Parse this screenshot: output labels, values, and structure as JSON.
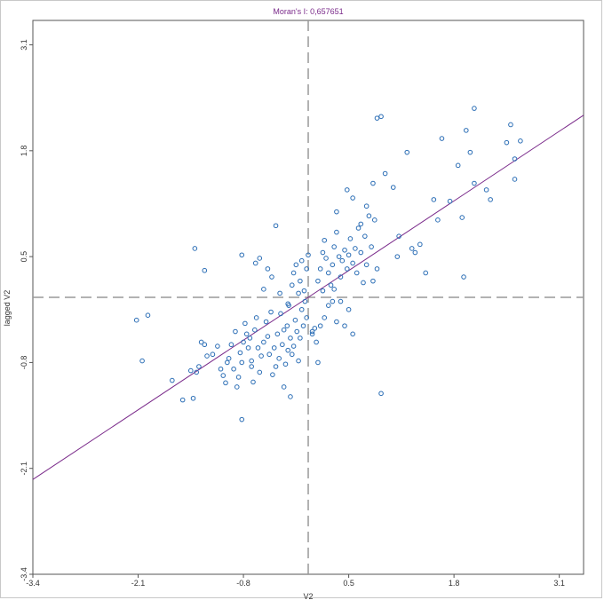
{
  "chart_data": {
    "type": "scatter",
    "title": "Moran's I: 0,657651",
    "xlabel": "V2",
    "ylabel": "lagged V2",
    "xlim": [
      -3.4,
      3.4
    ],
    "ylim": [
      -3.4,
      3.4
    ],
    "xticks": [
      -3.4,
      -2.1,
      -0.8,
      0.5,
      1.8,
      3.1
    ],
    "xtick_labels": [
      "-3.4",
      "-2.1",
      "-0.8",
      "0.5",
      "1.8",
      "3.1"
    ],
    "yticks": [
      -3.4,
      -2.1,
      -0.8,
      0.5,
      1.8,
      3.1
    ],
    "ytick_labels": [
      "-3.4",
      "-2.1",
      "-0.8",
      "0.5",
      "1.8",
      "3.1"
    ],
    "grid": false,
    "mean_lines": {
      "x": 0,
      "y": 0
    },
    "regression": {
      "slope": 0.657651,
      "intercept": 0.0
    },
    "colors": {
      "points": "#2a6db5",
      "regression": "#7a2a8a",
      "mean_lines": "#999999",
      "axes": "#555555"
    },
    "points": [
      [
        -2.12,
        -0.28
      ],
      [
        -1.98,
        -0.22
      ],
      [
        -2.05,
        -0.78
      ],
      [
        -1.68,
        -1.02
      ],
      [
        -1.55,
        -1.26
      ],
      [
        -1.42,
        -1.24
      ],
      [
        -1.45,
        -0.9
      ],
      [
        -1.38,
        -0.92
      ],
      [
        -1.35,
        -0.85
      ],
      [
        -1.32,
        -0.55
      ],
      [
        -1.28,
        -0.58
      ],
      [
        -1.25,
        -0.72
      ],
      [
        -1.18,
        -0.7
      ],
      [
        -1.12,
        -0.6
      ],
      [
        -1.08,
        -0.88
      ],
      [
        -1.05,
        -0.96
      ],
      [
        -1.02,
        -1.05
      ],
      [
        -1.0,
        -0.8
      ],
      [
        -0.98,
        -0.75
      ],
      [
        -0.95,
        -0.58
      ],
      [
        -0.92,
        -0.88
      ],
      [
        -0.9,
        -0.42
      ],
      [
        -0.88,
        -1.1
      ],
      [
        -0.86,
        -0.98
      ],
      [
        -0.84,
        -0.68
      ],
      [
        -0.82,
        -0.8
      ],
      [
        -0.8,
        -0.55
      ],
      [
        -0.78,
        -0.32
      ],
      [
        -0.76,
        -0.45
      ],
      [
        -0.74,
        -0.62
      ],
      [
        -0.72,
        -0.5
      ],
      [
        -0.7,
        -0.85
      ],
      [
        -0.68,
        -1.04
      ],
      [
        -0.66,
        -0.4
      ],
      [
        -0.64,
        -0.25
      ],
      [
        -0.62,
        -0.62
      ],
      [
        -0.6,
        -0.92
      ],
      [
        -0.58,
        -0.72
      ],
      [
        -0.55,
        -0.55
      ],
      [
        -0.52,
        -0.3
      ],
      [
        -0.5,
        -0.48
      ],
      [
        -0.48,
        -0.7
      ],
      [
        -0.46,
        -0.18
      ],
      [
        -0.44,
        -0.95
      ],
      [
        -0.42,
        -0.62
      ],
      [
        -0.4,
        -0.85
      ],
      [
        -0.38,
        -0.45
      ],
      [
        -0.36,
        -0.75
      ],
      [
        -0.34,
        -0.2
      ],
      [
        -0.32,
        -0.58
      ],
      [
        -0.3,
        -0.4
      ],
      [
        -0.28,
        -0.82
      ],
      [
        -0.26,
        -0.35
      ],
      [
        -0.24,
        -0.1
      ],
      [
        -0.22,
        -0.5
      ],
      [
        -0.2,
        -0.7
      ],
      [
        -0.18,
        -0.6
      ],
      [
        -0.16,
        -0.28
      ],
      [
        -0.14,
        -0.42
      ],
      [
        -0.12,
        -0.78
      ],
      [
        -0.1,
        -0.5
      ],
      [
        -0.08,
        -0.15
      ],
      [
        -0.06,
        -0.35
      ],
      [
        -0.04,
        -0.05
      ],
      [
        -0.02,
        -0.25
      ],
      [
        -0.25,
        -0.65
      ],
      [
        -0.25,
        -0.08
      ],
      [
        -0.2,
        0.15
      ],
      [
        -0.18,
        0.3
      ],
      [
        -0.15,
        0.4
      ],
      [
        -0.12,
        0.05
      ],
      [
        -0.1,
        0.2
      ],
      [
        -0.08,
        0.45
      ],
      [
        -0.05,
        0.08
      ],
      [
        -0.02,
        0.35
      ],
      [
        0.0,
        0.52
      ],
      [
        -0.35,
        0.05
      ],
      [
        -0.45,
        0.25
      ],
      [
        -0.5,
        0.35
      ],
      [
        -0.55,
        0.1
      ],
      [
        -0.6,
        0.48
      ],
      [
        -0.65,
        0.42
      ],
      [
        -0.4,
        0.88
      ],
      [
        -0.82,
        0.52
      ],
      [
        -1.4,
        0.6
      ],
      [
        -1.28,
        0.33
      ],
      [
        -0.82,
        -1.5
      ],
      [
        -0.22,
        -1.22
      ],
      [
        0.05,
        -0.45
      ],
      [
        0.08,
        -0.38
      ],
      [
        0.1,
        -0.55
      ],
      [
        0.12,
        -0.8
      ],
      [
        0.15,
        -0.35
      ],
      [
        0.2,
        -0.25
      ],
      [
        0.25,
        -0.1
      ],
      [
        0.3,
        -0.05
      ],
      [
        0.32,
        0.1
      ],
      [
        0.35,
        -0.3
      ],
      [
        0.4,
        -0.05
      ],
      [
        0.45,
        -0.35
      ],
      [
        0.5,
        -0.15
      ],
      [
        0.55,
        -0.45
      ],
      [
        0.12,
        0.2
      ],
      [
        0.15,
        0.35
      ],
      [
        0.18,
        0.55
      ],
      [
        0.2,
        0.7
      ],
      [
        0.22,
        0.48
      ],
      [
        0.25,
        0.3
      ],
      [
        0.28,
        0.15
      ],
      [
        0.3,
        0.4
      ],
      [
        0.32,
        0.62
      ],
      [
        0.35,
        0.8
      ],
      [
        0.38,
        0.5
      ],
      [
        0.4,
        0.25
      ],
      [
        0.42,
        0.45
      ],
      [
        0.45,
        0.58
      ],
      [
        0.48,
        0.35
      ],
      [
        0.5,
        0.52
      ],
      [
        0.52,
        0.72
      ],
      [
        0.55,
        0.42
      ],
      [
        0.58,
        0.6
      ],
      [
        0.6,
        0.3
      ],
      [
        0.62,
        0.85
      ],
      [
        0.65,
        0.55
      ],
      [
        0.68,
        0.18
      ],
      [
        0.7,
        0.75
      ],
      [
        0.72,
        0.4
      ],
      [
        0.75,
        1.0
      ],
      [
        0.78,
        0.62
      ],
      [
        0.8,
        0.2
      ],
      [
        0.82,
        0.95
      ],
      [
        0.85,
        0.35
      ],
      [
        0.18,
        0.08
      ],
      [
        0.35,
        1.05
      ],
      [
        0.48,
        1.32
      ],
      [
        0.55,
        1.22
      ],
      [
        0.65,
        0.9
      ],
      [
        0.72,
        1.12
      ],
      [
        0.8,
        1.4
      ],
      [
        0.85,
        2.2
      ],
      [
        0.9,
        2.22
      ],
      [
        0.95,
        1.52
      ],
      [
        1.05,
        1.35
      ],
      [
        1.1,
        0.5
      ],
      [
        1.12,
        0.75
      ],
      [
        1.22,
        1.78
      ],
      [
        1.28,
        0.6
      ],
      [
        1.32,
        0.55
      ],
      [
        1.38,
        0.65
      ],
      [
        1.45,
        0.3
      ],
      [
        1.55,
        1.2
      ],
      [
        1.6,
        0.95
      ],
      [
        1.65,
        1.95
      ],
      [
        1.75,
        1.18
      ],
      [
        1.85,
        1.62
      ],
      [
        1.9,
        0.98
      ],
      [
        1.92,
        0.25
      ],
      [
        1.95,
        2.05
      ],
      [
        2.0,
        1.78
      ],
      [
        2.05,
        2.32
      ],
      [
        2.05,
        1.4
      ],
      [
        2.2,
        1.32
      ],
      [
        2.25,
        1.2
      ],
      [
        2.45,
        1.9
      ],
      [
        2.5,
        2.12
      ],
      [
        2.55,
        1.45
      ],
      [
        2.55,
        1.7
      ],
      [
        2.62,
        1.92
      ],
      [
        0.9,
        -1.18
      ],
      [
        0.05,
        -0.42
      ],
      [
        -0.3,
        -1.1
      ],
      [
        -0.7,
        -0.78
      ]
    ]
  }
}
